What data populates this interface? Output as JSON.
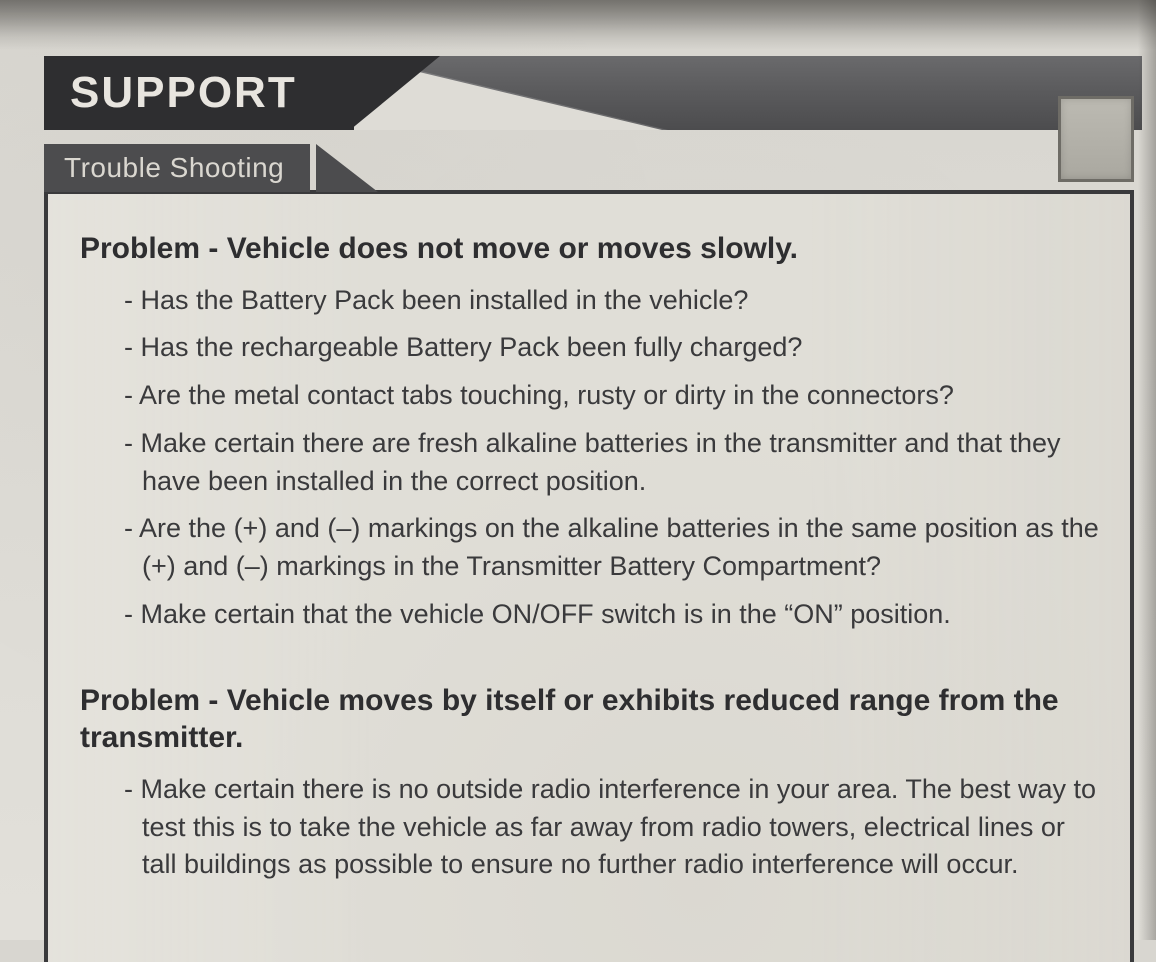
{
  "header": {
    "title": "SUPPORT",
    "section": "Trouble Shooting"
  },
  "colors": {
    "page_bg": "#d8d6d0",
    "dark_bar": "#2e2e30",
    "mid_bar": "#5a5a5c",
    "tab_bg": "#4c4c4e",
    "content_bg": "#e0ded7",
    "border": "#3a3a3c",
    "text": "#2e2e30",
    "body_text": "#3a3a3c",
    "light_text": "#e8e5df"
  },
  "typography": {
    "header_font_size": 44,
    "section_font_size": 28,
    "problem_title_font_size": 30,
    "body_font_size": 27,
    "font_family": "Arial, Helvetica, sans-serif"
  },
  "problems": [
    {
      "title": "Problem - Vehicle does not move or moves slowly.",
      "items": [
        "Has the Battery Pack been installed in the vehicle?",
        "Has the rechargeable Battery Pack been fully charged?",
        "Are the metal contact tabs touching, rusty or dirty in the connectors?",
        "Make certain there are fresh alkaline batteries in the transmitter and that they have been installed in the correct position.",
        "Are the (+) and (–) markings on the alkaline batteries in the same position as the (+) and (–) markings in the Transmitter Battery Compartment?",
        "Make certain that the vehicle ON/OFF switch is in the “ON” position."
      ]
    },
    {
      "title": "Problem - Vehicle moves by itself or exhibits reduced range from the transmitter.",
      "items": [
        "Make certain there is no outside radio interference in your area. The best way to test this is to take the vehicle as far away from radio towers, electrical lines or tall buildings as possible to ensure no further radio interference will occur."
      ]
    }
  ]
}
